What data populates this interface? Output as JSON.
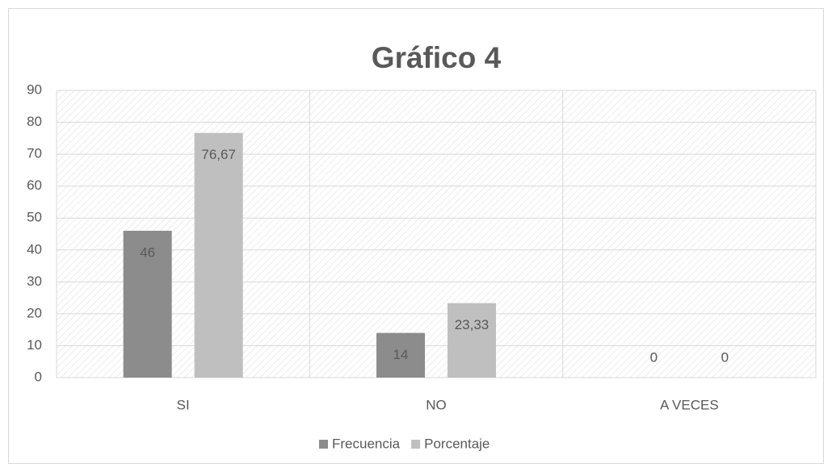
{
  "chart_data": {
    "type": "bar",
    "title": "Gráfico  4",
    "categories": [
      "SI",
      "NO",
      "A VECES"
    ],
    "series": [
      {
        "name": "Frecuencia",
        "color": "#8c8c8c",
        "values": [
          46,
          14,
          0
        ]
      },
      {
        "name": "Porcentaje",
        "color": "#bfbfbf",
        "values": [
          76.67,
          23.33,
          0
        ],
        "value_labels": [
          "76,67",
          "23,33",
          "0"
        ]
      }
    ],
    "ylim": [
      0,
      90
    ],
    "yticks": [
      0,
      10,
      20,
      30,
      40,
      50,
      60,
      70,
      80,
      90
    ],
    "grid": true,
    "legend": "bottom"
  }
}
